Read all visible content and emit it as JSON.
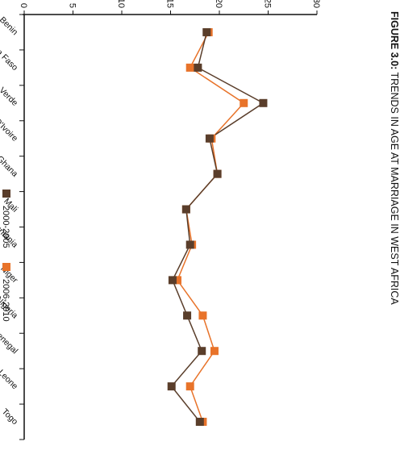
{
  "chart_data": {
    "type": "line",
    "title_prefix": "FIGURE 3.0:",
    "title_rest": " TRENDS IN AGE AT MARRIAGE IN WEST AFRICA",
    "categories": [
      "Benin",
      "Burkina Faso",
      "Cape Verde",
      "Cote D'Ivoire",
      "Ghana",
      "Mali",
      "Mauritania",
      "Niger",
      "Nigeria",
      "Senegal",
      "Sierra Leone",
      "Togo"
    ],
    "ylim": [
      0,
      30
    ],
    "yticks": [
      0,
      5,
      10,
      15,
      20,
      25,
      30
    ],
    "grid": false,
    "legend_position": "bottom",
    "series": [
      {
        "name": "2000-2005",
        "color": "#5a3e2b",
        "values": [
          18.7,
          17.8,
          24.5,
          19.0,
          19.8,
          16.6,
          17.0,
          15.2,
          16.7,
          18.2,
          15.1,
          18.0
        ]
      },
      {
        "name": "2006-2010",
        "color": "#e8732a",
        "values": [
          18.9,
          17.0,
          22.5,
          19.2,
          19.8,
          16.6,
          17.2,
          15.7,
          18.3,
          19.5,
          17.0,
          18.3
        ]
      }
    ]
  }
}
